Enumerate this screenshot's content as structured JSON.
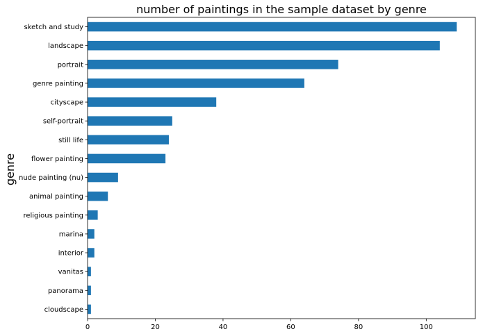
{
  "chart_data": {
    "type": "bar",
    "orientation": "horizontal",
    "title": "number of paintings in the sample dataset by genre",
    "xlabel": "",
    "ylabel": "genre",
    "categories": [
      "sketch and study",
      "landscape",
      "portrait",
      "genre painting",
      "cityscape",
      "self-portrait",
      "still life",
      "flower painting",
      "nude painting (nu)",
      "animal painting",
      "religious painting",
      "marina",
      "interior",
      "vanitas",
      "panorama",
      "cloudscape"
    ],
    "values": [
      109,
      104,
      74,
      64,
      38,
      25,
      24,
      23,
      9,
      6,
      3,
      2,
      2,
      1,
      1,
      1
    ],
    "xticks": [
      0,
      20,
      40,
      60,
      80,
      100
    ],
    "xlim": [
      0,
      114.5
    ],
    "bar_color": "#1f77b4",
    "grid": false,
    "legend": "none"
  }
}
